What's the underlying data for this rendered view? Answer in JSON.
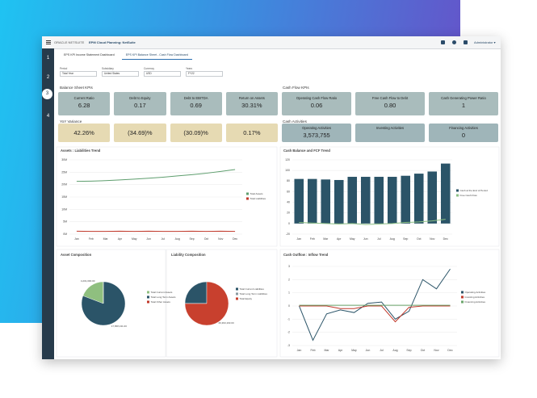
{
  "header": {
    "brand": "ORACLE NETSUITE",
    "app": "EPM Cloud Planning: NetSuite",
    "user": "Administrator ▾"
  },
  "nav": [
    "1",
    "2",
    "3",
    "4"
  ],
  "tabs": [
    "EPS KPI Income Statement Dashboard",
    "EPS KPI Balance Sheet - Cash Flow Dashboard"
  ],
  "filters": [
    {
      "label": "Period",
      "value": "Total Year"
    },
    {
      "label": "Subsidiary",
      "value": "United States"
    },
    {
      "label": "Currency",
      "value": "USD"
    },
    {
      "label": "Years",
      "value": "FY22"
    }
  ],
  "balance_kpis": {
    "title": "Balance Sheet KPIs",
    "tiles": [
      {
        "label": "Current Ratio",
        "value": "6.28"
      },
      {
        "label": "Debt to Equity",
        "value": "0.17"
      },
      {
        "label": "Debt to EBITDA",
        "value": "0.69"
      },
      {
        "label": "Return on Assets",
        "value": "30.31%"
      }
    ]
  },
  "cash_kpis": {
    "title": "Cash Flow KPIs",
    "tiles": [
      {
        "label": "Operating Cash Flow Ratio",
        "value": "0.06"
      },
      {
        "label": "Free Cash Flow to Debt",
        "value": "0.80"
      },
      {
        "label": "Cash Generating Power Ratio",
        "value": "1"
      }
    ]
  },
  "yoy": {
    "title": "YoY Variance",
    "tiles": [
      "42.26%",
      "(34.69)%",
      "(30.09)%",
      "0.17%"
    ]
  },
  "cash_activities": {
    "title": "Cash Activities",
    "tiles": [
      {
        "label": "Operating Activities",
        "value": "3,573,755"
      },
      {
        "label": "Investing Activities"
      },
      {
        "label": "Financing Activities",
        "value": "0"
      }
    ]
  },
  "chart_data": [
    {
      "type": "line",
      "title": "Assets : Liabilities Trend",
      "categories": [
        "Jan",
        "Feb",
        "Mar",
        "Apr",
        "May",
        "Jun",
        "Jul",
        "Aug",
        "Sep",
        "Oct",
        "Nov",
        "Dec"
      ],
      "ylim": [
        0,
        30
      ],
      "yticks": [
        {
          "value": 0,
          "label": "0M"
        },
        {
          "value": 5,
          "label": "5M"
        },
        {
          "value": 10,
          "label": "10M"
        },
        {
          "value": 15,
          "label": "15M"
        },
        {
          "value": 20,
          "label": "20M"
        },
        {
          "value": 25,
          "label": "25M"
        },
        {
          "value": 30,
          "label": "30M"
        }
      ],
      "grid": true,
      "series": [
        {
          "name": "Total Assets",
          "color": "#5e9e6e",
          "values": [
            21.3,
            21.4,
            21.6,
            21.9,
            22.2,
            22.6,
            23.0,
            23.5,
            24.0,
            24.6,
            25.3,
            26.1
          ]
        },
        {
          "name": "Total Liabilities",
          "color": "#c0392b",
          "values": [
            1.2,
            1.1,
            1.1,
            1.2,
            1.1,
            1.2,
            1.1,
            1.1,
            1.2,
            1.1,
            1.2,
            1.1
          ]
        }
      ]
    },
    {
      "type": "combo",
      "title": "Cash Balance and FCF Trend",
      "categories": [
        "Jan",
        "Feb",
        "Mar",
        "Apr",
        "May",
        "Jun",
        "Jul",
        "Aug",
        "Sep",
        "Oct",
        "Nov",
        "Dec"
      ],
      "ylim": [
        -20,
        120
      ],
      "yticks": [
        -20,
        0,
        20,
        40,
        60,
        80,
        100,
        120
      ],
      "grid": true,
      "series": [
        {
          "name": "Cash at the End of Period",
          "type": "bar",
          "color": "#2b5468",
          "values": [
            84,
            84,
            83,
            82,
            88,
            88,
            88,
            88,
            90,
            94,
            98,
            113
          ]
        },
        {
          "name": "Free Cash Flow",
          "type": "line",
          "color": "#8cc084",
          "values": [
            2,
            1,
            0,
            -1,
            0,
            -2,
            -1,
            0,
            2,
            3,
            5,
            8
          ]
        }
      ]
    },
    {
      "type": "pie",
      "title": "Asset Composition",
      "categories": [
        "Total Current Assets",
        "Total Long Term Assets",
        "Total Other Assets"
      ],
      "colors": [
        "#8fbf7f",
        "#2b5468",
        "#c0392b"
      ],
      "values": [
        4201000,
        17658131,
        0
      ],
      "value_labels": [
        "4,201,000.00",
        "17,658,131.00",
        null
      ]
    },
    {
      "type": "pie",
      "title": "Liability Composition",
      "categories": [
        "Total Current Liabilities",
        "Total Long Term Liabilities",
        "Total Equity"
      ],
      "colors": [
        "#2b5468",
        "#8a9aa0",
        "#c8402e"
      ],
      "values": [
        8800000,
        0,
        26393163
      ],
      "value_labels": [
        null,
        null,
        "26,393,163.00"
      ]
    },
    {
      "type": "line",
      "title": "Cash Outflow : Inflow Trend",
      "categories": [
        "Jan",
        "Feb",
        "Mar",
        "Apr",
        "May",
        "Jun",
        "Jul",
        "Aug",
        "Sep",
        "Oct",
        "Nov",
        "Dec"
      ],
      "ylim": [
        -3,
        3
      ],
      "yticks": [
        -3,
        -2,
        -1,
        0,
        1,
        2,
        3
      ],
      "grid": true,
      "series": [
        {
          "name": "Operating Activities",
          "color": "#2b5468",
          "values": [
            0,
            -2.6,
            -0.6,
            -0.3,
            -0.5,
            0.2,
            0.3,
            -1.0,
            -0.4,
            2.0,
            1.3,
            2.8
          ]
        },
        {
          "name": "Investing Activities",
          "color": "#c0392b",
          "values": [
            0,
            0,
            0,
            -0.2,
            -0.2,
            0,
            0,
            -1.2,
            -0.1,
            0,
            0,
            0
          ]
        },
        {
          "name": "Financing Activities",
          "color": "#6aa56a",
          "values": [
            0.05,
            0.05,
            0.05,
            0.05,
            0.05,
            0.05,
            0.05,
            0.05,
            0.05,
            0.05,
            0.05,
            0.05
          ]
        }
      ]
    }
  ]
}
